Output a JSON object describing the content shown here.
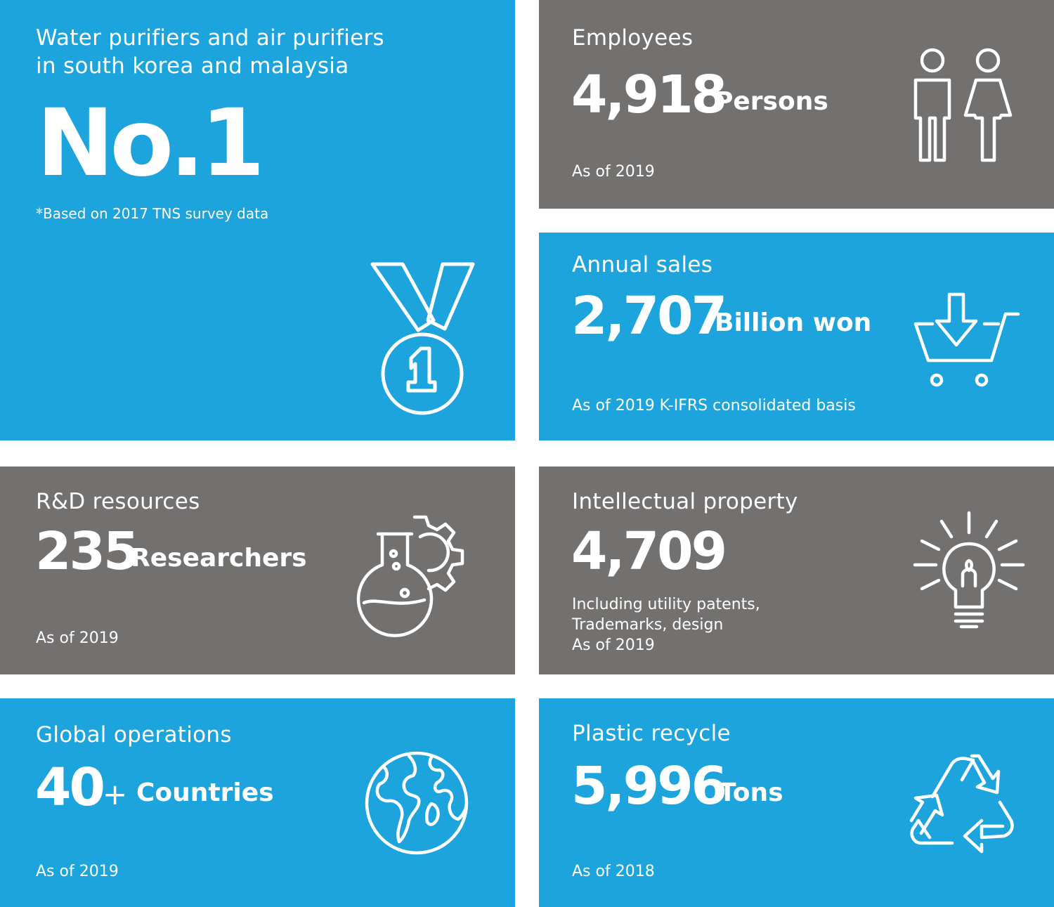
{
  "tiles": {
    "no1": {
      "headline_line1": "Water purifiers and air purifiers",
      "headline_line2": "in south korea and malaysia",
      "value": "No.1",
      "footnote": "*Based on 2017 TNS survey data",
      "icon": "medal-icon",
      "background": "#1ea4dd"
    },
    "employees": {
      "label": "Employees",
      "value": "4,918",
      "unit": "Persons",
      "note": "As of 2019",
      "icon": "people-icon",
      "background": "#737170"
    },
    "annual_sales": {
      "label": "Annual sales",
      "value": "2,707",
      "unit": "Billion won",
      "note": "As of 2019 K-IFRS consolidated basis",
      "icon": "shopping-cart-icon",
      "background": "#1ea4dd"
    },
    "rnd": {
      "label": "R&D resources",
      "value": "235",
      "unit": "Researchers",
      "note": "As of 2019",
      "icon": "flask-gear-icon",
      "background": "#737170"
    },
    "ip": {
      "label": "Intellectual property",
      "value": "4,709",
      "note_line1": "Including utility patents,",
      "note_line2": "Trademarks, design",
      "note_line3": "As of 2019",
      "icon": "lightbulb-icon",
      "background": "#737170"
    },
    "global": {
      "label": "Global operations",
      "value": "40",
      "plus": "+",
      "unit": "Countries",
      "note": "As of 2019",
      "icon": "globe-icon",
      "background": "#1ea4dd"
    },
    "recycle": {
      "label": "Plastic recycle",
      "value": "5,996",
      "unit": "Tons",
      "note": "As of 2018",
      "icon": "recycle-icon",
      "background": "#1ea4dd"
    }
  }
}
